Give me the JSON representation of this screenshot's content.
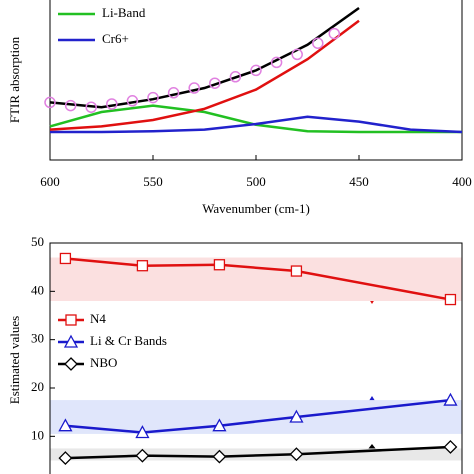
{
  "chart_data": [
    {
      "type": "line",
      "xlabel": "Wavenumber (cm-1)",
      "ylabel": "FTIR absorption",
      "xlim": [
        600,
        400
      ],
      "ylim": [
        0,
        1
      ],
      "xticks": [
        600,
        550,
        500,
        450,
        400
      ],
      "x": [
        600,
        575,
        550,
        525,
        500,
        475,
        450,
        425,
        400
      ],
      "series": [
        {
          "name": "Li-Band",
          "color": "#22c022",
          "values": [
            0.21,
            0.3,
            0.34,
            0.3,
            0.22,
            0.18,
            0.175,
            0.175,
            0.175
          ]
        },
        {
          "name": "Cr6+",
          "color": "#2222cc",
          "values": [
            0.175,
            0.175,
            0.18,
            0.19,
            0.225,
            0.27,
            0.24,
            0.19,
            0.175
          ]
        },
        {
          "name": null,
          "color": "#e01010",
          "values": [
            0.19,
            0.21,
            0.25,
            0.32,
            0.44,
            0.63,
            0.87,
            null,
            null
          ]
        },
        {
          "name": null,
          "color": "#000000",
          "values": [
            0.36,
            0.33,
            0.38,
            0.45,
            0.56,
            0.72,
            0.95,
            null,
            null
          ]
        }
      ],
      "points": {
        "color": "#e080e0",
        "x": [
          600,
          590,
          580,
          570,
          560,
          550,
          540,
          530,
          520,
          510,
          500,
          490,
          480,
          470,
          462
        ],
        "values": [
          0.36,
          0.34,
          0.33,
          0.35,
          0.37,
          0.39,
          0.42,
          0.45,
          0.48,
          0.52,
          0.56,
          0.61,
          0.66,
          0.73,
          0.79
        ]
      }
    },
    {
      "type": "line",
      "ylabel": "Estimated values",
      "xlim": [
        0.8,
        6.15
      ],
      "ylim": [
        2,
        50
      ],
      "yticks": [
        10,
        20,
        30,
        40,
        50
      ],
      "x": [
        1,
        2,
        3,
        4,
        6
      ],
      "bands": [
        {
          "range": [
            38,
            47
          ],
          "color": "#fbe0e0"
        },
        {
          "range": [
            10.5,
            17.5
          ],
          "color": "#e0e6fb"
        },
        {
          "range": [
            5,
            7.5
          ],
          "color": "#e8e8e8"
        }
      ],
      "series": [
        {
          "name": "N4",
          "color": "#e01010",
          "marker": "square",
          "values": [
            46.8,
            45.3,
            45.5,
            44.2,
            38.3
          ]
        },
        {
          "name": "Li & Cr Bands",
          "color": "#1a1acc",
          "marker": "triangle",
          "values": [
            12.2,
            10.8,
            12.2,
            14.0,
            17.5
          ]
        },
        {
          "name": "NBO",
          "color": "#000000",
          "marker": "diamond",
          "values": [
            5.5,
            6.0,
            5.8,
            6.3,
            7.8
          ]
        }
      ]
    }
  ]
}
